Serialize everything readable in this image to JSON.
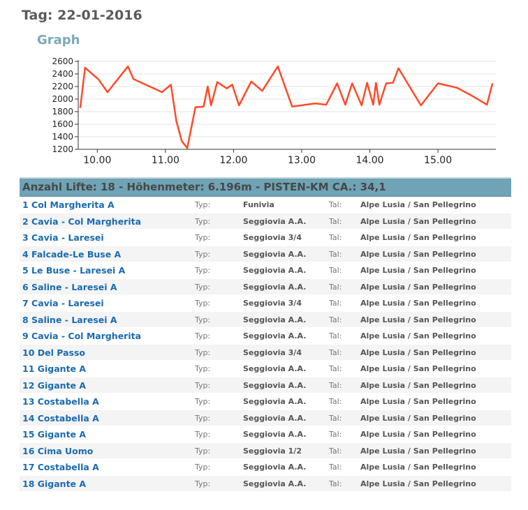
{
  "page": {
    "day_title": "Tag: 22-01-2016",
    "graph_title": "Graph"
  },
  "colors": {
    "line": "#ff4a2a",
    "axis": "#333333",
    "grid": "#e5e5e5",
    "summary_bg": "#6fa3b5",
    "link": "#1a6bb0"
  },
  "chart_data": {
    "type": "line",
    "title": "",
    "xlabel": "",
    "ylabel": "",
    "xlim": [
      9.72,
      15.85
    ],
    "ylim": [
      1200,
      2600
    ],
    "x_ticks": [
      {
        "v": 10,
        "label": "10.00"
      },
      {
        "v": 11,
        "label": "11.00"
      },
      {
        "v": 12,
        "label": "12.00"
      },
      {
        "v": 13,
        "label": "13.00"
      },
      {
        "v": 14,
        "label": "14.00"
      },
      {
        "v": 15,
        "label": "15.00"
      }
    ],
    "y_ticks": [
      {
        "v": 1200,
        "label": "1200"
      },
      {
        "v": 1400,
        "label": "1400"
      },
      {
        "v": 1600,
        "label": "1600"
      },
      {
        "v": 1800,
        "label": "1800"
      },
      {
        "v": 2000,
        "label": "2000"
      },
      {
        "v": 2200,
        "label": "2200"
      },
      {
        "v": 2400,
        "label": "2400"
      },
      {
        "v": 2600,
        "label": "2600"
      }
    ],
    "grid": true,
    "legend": "none",
    "series": [
      {
        "x": [
          9.75,
          9.82,
          10.02,
          10.15,
          10.45,
          10.53,
          10.95,
          11.08,
          11.16,
          11.24,
          11.32,
          11.44,
          11.56,
          11.62,
          11.67,
          11.76,
          11.9,
          11.98,
          12.08,
          12.26,
          12.42,
          12.65,
          12.86,
          13.2,
          13.36,
          13.52,
          13.64,
          13.74,
          13.88,
          13.96,
          14.05,
          14.09,
          14.14,
          14.24,
          14.34,
          14.42,
          14.75,
          15.0,
          15.28,
          15.52,
          15.72,
          15.8
        ],
        "y": [
          1860,
          2500,
          2310,
          2110,
          2520,
          2320,
          2110,
          2230,
          1650,
          1330,
          1220,
          1870,
          1880,
          2200,
          1900,
          2270,
          2170,
          2230,
          1900,
          2280,
          2130,
          2520,
          1880,
          1930,
          1910,
          2250,
          1910,
          2250,
          1900,
          2260,
          1910,
          2260,
          1910,
          2250,
          2260,
          2490,
          1900,
          2250,
          2180,
          2040,
          1910,
          2250
        ]
      }
    ]
  },
  "summary": {
    "text": "Anzahl Lifte: 18 - Höhenmeter: 6.196m - PISTEN-KM CA.: 34,1"
  },
  "lifts": [
    {
      "name": "1 Col Margherita A",
      "typ_label": "Typ:",
      "typ": "Funivia",
      "tal_label": "Tal:",
      "tal": "Alpe Lusia / San Pellegrino"
    },
    {
      "name": "2 Cavia - Col Margherita",
      "typ_label": "Typ:",
      "typ": "Seggiovia A.A.",
      "tal_label": "Tal:",
      "tal": "Alpe Lusia / San Pellegrino"
    },
    {
      "name": "3 Cavia - Laresei",
      "typ_label": "Typ:",
      "typ": "Seggiovia 3/4",
      "tal_label": "Tal:",
      "tal": "Alpe Lusia / San Pellegrino"
    },
    {
      "name": "4 Falcade-Le Buse A",
      "typ_label": "Typ:",
      "typ": "Seggiovia A.A.",
      "tal_label": "Tal:",
      "tal": "Alpe Lusia / San Pellegrino"
    },
    {
      "name": "5 Le Buse - Laresei A",
      "typ_label": "Typ:",
      "typ": "Seggiovia A.A.",
      "tal_label": "Tal:",
      "tal": "Alpe Lusia / San Pellegrino"
    },
    {
      "name": "6 Saline - Laresei A",
      "typ_label": "Typ:",
      "typ": "Seggiovia A.A.",
      "tal_label": "Tal:",
      "tal": "Alpe Lusia / San Pellegrino"
    },
    {
      "name": "7 Cavia - Laresei",
      "typ_label": "Typ:",
      "typ": "Seggiovia 3/4",
      "tal_label": "Tal:",
      "tal": "Alpe Lusia / San Pellegrino"
    },
    {
      "name": "8 Saline - Laresei A",
      "typ_label": "Typ:",
      "typ": "Seggiovia A.A.",
      "tal_label": "Tal:",
      "tal": "Alpe Lusia / San Pellegrino"
    },
    {
      "name": "9 Cavia - Col Margherita",
      "typ_label": "Typ:",
      "typ": "Seggiovia A.A.",
      "tal_label": "Tal:",
      "tal": "Alpe Lusia / San Pellegrino"
    },
    {
      "name": "10 Del Passo",
      "typ_label": "Typ:",
      "typ": "Seggiovia 3/4",
      "tal_label": "Tal:",
      "tal": "Alpe Lusia / San Pellegrino"
    },
    {
      "name": "11 Gigante A",
      "typ_label": "Typ:",
      "typ": "Seggiovia A.A.",
      "tal_label": "Tal:",
      "tal": "Alpe Lusia / San Pellegrino"
    },
    {
      "name": "12 Gigante A",
      "typ_label": "Typ:",
      "typ": "Seggiovia A.A.",
      "tal_label": "Tal:",
      "tal": "Alpe Lusia / San Pellegrino"
    },
    {
      "name": "13 Costabella A",
      "typ_label": "Typ:",
      "typ": "Seggiovia A.A.",
      "tal_label": "Tal:",
      "tal": "Alpe Lusia / San Pellegrino"
    },
    {
      "name": "14 Costabella A",
      "typ_label": "Typ:",
      "typ": "Seggiovia A.A.",
      "tal_label": "Tal:",
      "tal": "Alpe Lusia / San Pellegrino"
    },
    {
      "name": "15 Gigante A",
      "typ_label": "Typ:",
      "typ": "Seggiovia A.A.",
      "tal_label": "Tal:",
      "tal": "Alpe Lusia / San Pellegrino"
    },
    {
      "name": "16 Cima Uomo",
      "typ_label": "Typ:",
      "typ": "Seggiovia 1/2",
      "tal_label": "Tal:",
      "tal": "Alpe Lusia / San Pellegrino"
    },
    {
      "name": "17 Costabella A",
      "typ_label": "Typ:",
      "typ": "Seggiovia A.A.",
      "tal_label": "Tal:",
      "tal": "Alpe Lusia / San Pellegrino"
    },
    {
      "name": "18 Gigante A",
      "typ_label": "Typ:",
      "typ": "Seggiovia A.A.",
      "tal_label": "Tal:",
      "tal": "Alpe Lusia / San Pellegrino"
    }
  ]
}
